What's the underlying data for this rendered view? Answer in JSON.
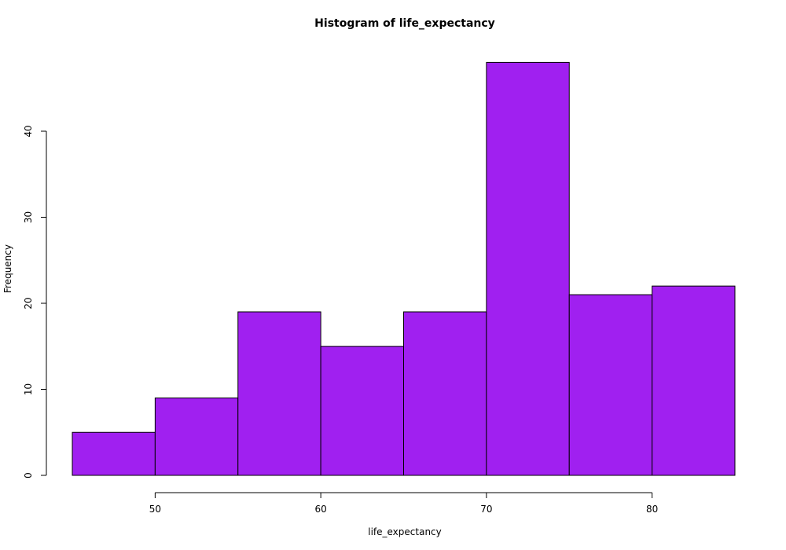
{
  "chart_data": {
    "type": "bar",
    "title": "Histogram of life_expectancy",
    "xlabel": "life_expectancy",
    "ylabel": "Frequency",
    "bin_edges": [
      45,
      50,
      55,
      60,
      65,
      70,
      75,
      80,
      85
    ],
    "values": [
      5,
      9,
      19,
      15,
      19,
      48,
      21,
      22
    ],
    "x_ticks": [
      50,
      60,
      70,
      80
    ],
    "y_ticks": [
      0,
      10,
      20,
      30,
      40
    ],
    "xlim": [
      45,
      85
    ],
    "ylim": [
      0,
      48
    ],
    "grid": false,
    "bar_color": "#a020f0"
  }
}
